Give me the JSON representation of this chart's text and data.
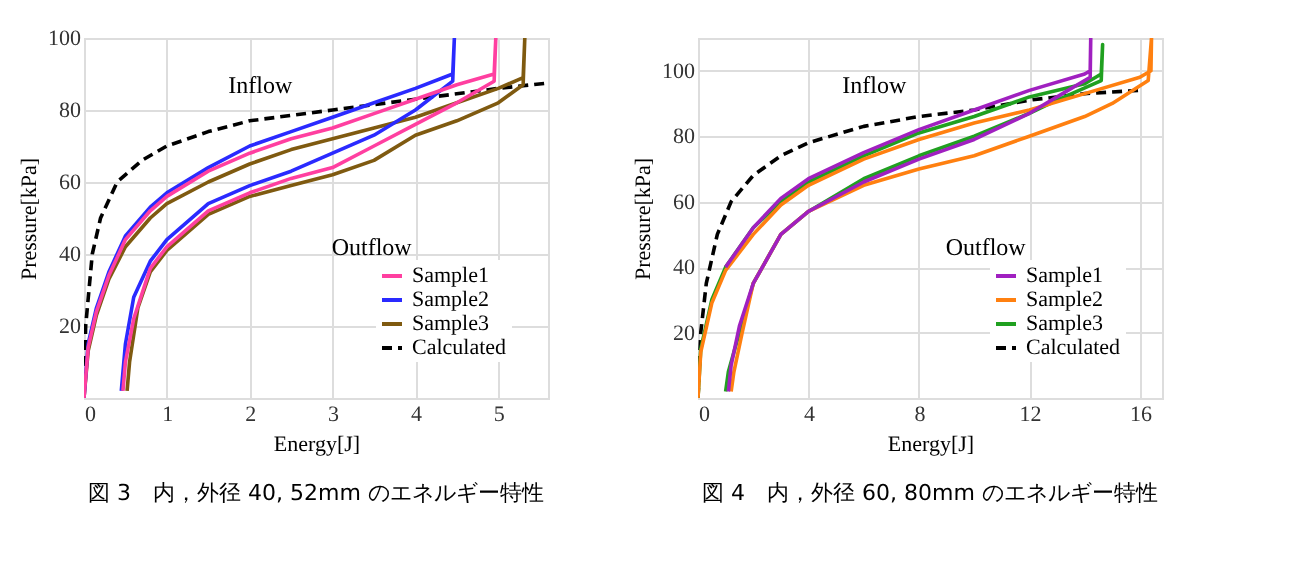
{
  "chart_data": [
    {
      "type": "line",
      "title": "図 3　内，外径 40, 52mm のエネルギー特性",
      "xlabel": "Energy[J]",
      "ylabel": "Pressure[kPa]",
      "xlim": [
        0,
        5.6
      ],
      "ylim": [
        0,
        100
      ],
      "xticks": [
        0,
        1,
        2,
        3,
        4,
        5
      ],
      "yticks": [
        20,
        40,
        60,
        80,
        100
      ],
      "grid": true,
      "legend": "bottom right",
      "annotations": [
        "Inflow",
        "Outflow"
      ],
      "series": [
        {
          "name": "Sample1",
          "color": "#ff3fa0",
          "line_style": "solid",
          "x": [
            0,
            0.05,
            0.15,
            0.3,
            0.5,
            0.8,
            1,
            1.5,
            2,
            2.5,
            3,
            3.5,
            4,
            4.5,
            4.95,
            4.97,
            4.95,
            4.5,
            4,
            3.5,
            3,
            2.5,
            2,
            1.5,
            1,
            0.8,
            0.6,
            0.5,
            0.47
          ],
          "values": [
            0,
            14,
            24,
            34,
            44,
            52,
            56,
            63,
            68,
            72,
            75,
            79,
            83,
            87,
            90,
            100,
            88,
            82,
            76,
            70,
            64,
            61,
            57,
            52,
            42,
            36,
            22,
            10,
            2
          ]
        },
        {
          "name": "Sample2",
          "color": "#2a2aff",
          "line_style": "solid",
          "x": [
            0,
            0.05,
            0.15,
            0.3,
            0.5,
            0.8,
            1,
            1.5,
            2,
            2.5,
            3,
            3.5,
            4,
            4.45,
            4.47,
            4.45,
            4,
            3.5,
            3,
            2.5,
            2,
            1.5,
            1,
            0.8,
            0.6,
            0.5,
            0.45
          ],
          "values": [
            0,
            15,
            25,
            35,
            45,
            53,
            57,
            64,
            70,
            74,
            78,
            82,
            86,
            90,
            100,
            88,
            80,
            73,
            68,
            63,
            59,
            54,
            44,
            38,
            28,
            15,
            2
          ]
        },
        {
          "name": "Sample3",
          "color": "#7f5a10",
          "line_style": "solid",
          "x": [
            0,
            0.05,
            0.15,
            0.3,
            0.5,
            0.8,
            1,
            1.5,
            2,
            2.5,
            3,
            3.5,
            4,
            4.5,
            5,
            5.3,
            5.32,
            5.3,
            5,
            4.5,
            4,
            3.5,
            3,
            2.5,
            2,
            1.5,
            1,
            0.8,
            0.65,
            0.55,
            0.52
          ],
          "values": [
            0,
            13,
            23,
            33,
            42,
            50,
            54,
            60,
            65,
            69,
            72,
            75,
            78,
            82,
            86,
            89,
            100,
            87,
            82,
            77,
            73,
            66,
            62,
            59,
            56,
            51,
            41,
            35,
            25,
            10,
            2
          ]
        },
        {
          "name": "Calculated",
          "color": "#000000",
          "line_style": "dashed",
          "x": [
            0,
            0.02,
            0.1,
            0.2,
            0.4,
            0.7,
            1,
            1.5,
            2,
            3,
            4,
            5,
            5.6
          ],
          "values": [
            0,
            20,
            40,
            50,
            60,
            66,
            70,
            74,
            77,
            80,
            83,
            86,
            87.5
          ]
        }
      ]
    },
    {
      "type": "line",
      "title": "図 4　内，外径 60, 80mm のエネルギー特性",
      "xlabel": "Energy[J]",
      "ylabel": "Pressure[kPa]",
      "xlim": [
        0,
        16.8
      ],
      "ylim": [
        0,
        110
      ],
      "xticks": [
        0,
        4,
        8,
        12,
        16
      ],
      "yticks": [
        20,
        40,
        60,
        80,
        100
      ],
      "grid": true,
      "legend": "bottom right",
      "annotations": [
        "Inflow",
        "Outflow"
      ],
      "series": [
        {
          "name": "Sample1",
          "color": "#a020c0",
          "line_style": "solid",
          "x": [
            1,
            2,
            3,
            4,
            6,
            8,
            10,
            12,
            14,
            14.2,
            14.22,
            14.2,
            13,
            12,
            10,
            8,
            6,
            4,
            3,
            2,
            1.5,
            1.2,
            1.1
          ],
          "values": [
            40,
            52,
            61,
            67,
            75,
            82,
            88,
            94,
            99,
            100,
            110,
            98,
            92,
            87,
            79,
            73,
            66,
            57,
            50,
            35,
            22,
            10,
            2
          ]
        },
        {
          "name": "Sample2",
          "color": "#ff8010",
          "line_style": "solid",
          "x": [
            0,
            0.1,
            0.5,
            1,
            2,
            3,
            4,
            6,
            8,
            10,
            12,
            14,
            16,
            16.4,
            16.42,
            16.3,
            15,
            14,
            12,
            10,
            8,
            6,
            4,
            3,
            2,
            1.6,
            1.3,
            1.2
          ],
          "values": [
            0,
            14,
            29,
            39,
            50,
            59,
            65,
            73,
            79,
            84,
            88,
            93,
            98,
            100,
            110,
            97,
            90,
            86,
            80,
            74,
            70,
            65,
            57,
            50,
            35,
            20,
            8,
            2
          ]
        },
        {
          "name": "Sample3",
          "color": "#20a020",
          "line_style": "solid",
          "x": [
            0,
            0.1,
            0.5,
            1,
            2,
            3,
            4,
            6,
            8,
            10,
            12,
            14,
            14.6,
            14.65,
            14.6,
            13,
            12,
            10,
            8,
            6,
            4,
            3,
            2,
            1.5,
            1.1,
            1
          ],
          "values": [
            0,
            15,
            30,
            40,
            52,
            60,
            66,
            74,
            81,
            86,
            92,
            96,
            99,
            108,
            97,
            91,
            87,
            80,
            74,
            67,
            57,
            50,
            35,
            20,
            8,
            2
          ]
        },
        {
          "name": "Calculated",
          "color": "#000000",
          "line_style": "dashed",
          "x": [
            0,
            0.1,
            0.3,
            0.7,
            1.2,
            2,
            3,
            4,
            6,
            8,
            10,
            12,
            14,
            16
          ],
          "values": [
            0,
            20,
            35,
            50,
            60,
            68,
            74,
            78,
            83,
            86,
            88,
            91,
            93,
            94
          ]
        }
      ]
    }
  ]
}
